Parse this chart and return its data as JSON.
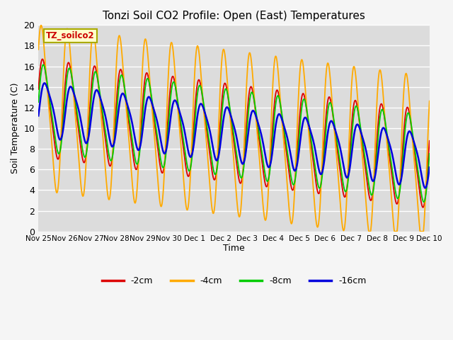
{
  "title": "Tonzi Soil CO2 Profile: Open (East) Temperatures",
  "xlabel": "Time",
  "ylabel": "Soil Temperature (C)",
  "legend_label": "TZ_soilco2",
  "series_labels": [
    "-2cm",
    "-4cm",
    "-8cm",
    "-16cm"
  ],
  "series_colors": [
    "#dd0000",
    "#ffaa00",
    "#00cc00",
    "#0000dd"
  ],
  "ylim": [
    0,
    20
  ],
  "xtick_labels": [
    "Nov 25",
    "Nov 26",
    "Nov 27",
    "Nov 28",
    "Nov 29",
    "Nov 30",
    "Dec 1",
    "Dec 2",
    "Dec 3",
    "Dec 4",
    "Dec 5",
    "Dec 6",
    "Dec 7",
    "Dec 8",
    "Dec 9",
    "Dec 10"
  ],
  "bg_color": "#dcdcdc",
  "grid_color": "#ffffff",
  "n_days": 15,
  "points_per_day": 96
}
